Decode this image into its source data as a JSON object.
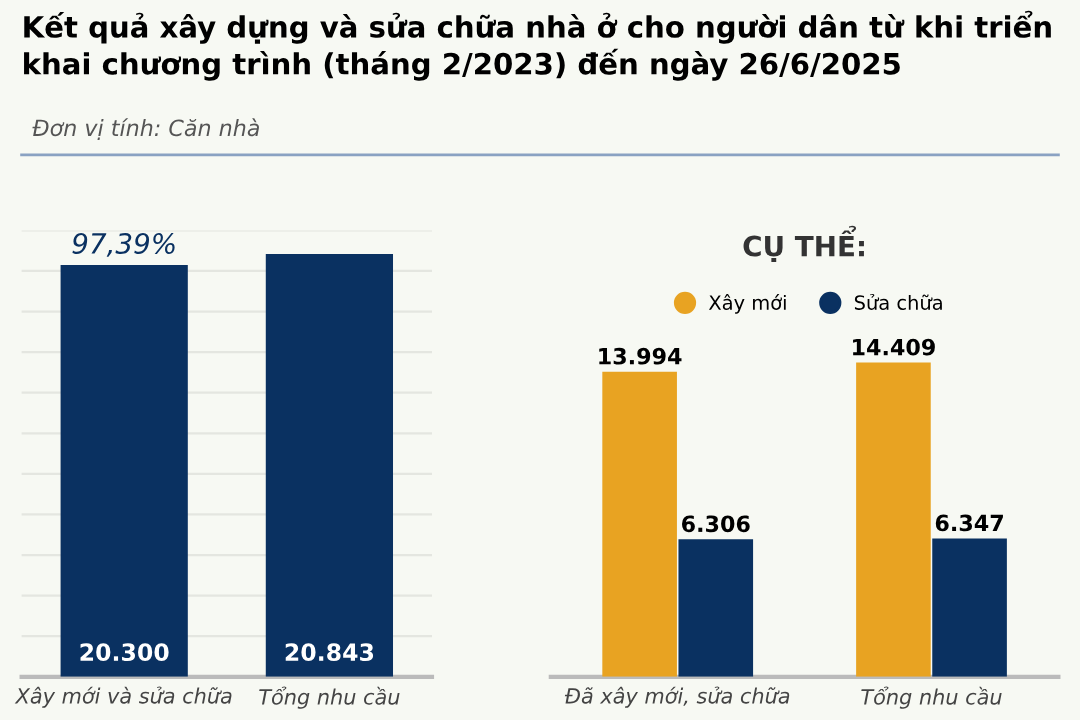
{
  "chart_data": [
    {
      "type": "bar",
      "title": "Kết quả xây dựng và sửa chữa nhà ở cho người dân từ khi triển khai chương trình (tháng 2/2023) đến ngày 26/6/2025",
      "subtitle": "Đơn vị tính: Căn nhà",
      "categories": [
        "Xây mới và sửa chữa",
        "Tổng nhu cầu"
      ],
      "values": [
        20300,
        20843
      ],
      "color": "#0a3161",
      "value_labels": [
        "20.300",
        "20.843"
      ],
      "annotations": [
        {
          "text": "97,39%",
          "x": "Xây mới và sửa chữa",
          "y": 20300
        }
      ],
      "ylim": [
        0,
        22000
      ],
      "yticks": [
        {
          "value": 0,
          "label": null
        },
        {
          "value": 2000,
          "label": null
        },
        {
          "value": 4000,
          "label": null
        },
        {
          "value": 6000,
          "label": null
        },
        {
          "value": 8000,
          "label": null
        },
        {
          "value": 10000,
          "label": null
        },
        {
          "value": 12000,
          "label": null
        },
        {
          "value": 14000,
          "label": null
        },
        {
          "value": 16000,
          "label": null
        },
        {
          "value": 18000,
          "label": null
        },
        {
          "value": 20000,
          "label": null
        },
        {
          "value": 22000,
          "label": null
        }
      ],
      "grid": "y",
      "tick_labels": "x"
    },
    {
      "type": "bar",
      "title": "CỤ THỂ:",
      "categories": [
        "Đã xây mới, sửa chữa",
        "Tổng nhu cầu"
      ],
      "series": [
        {
          "name": "Xây mới",
          "color": "#e8a322",
          "values": [
            13994,
            14409
          ],
          "value_labels": [
            "13.994",
            "14.409"
          ]
        },
        {
          "name": "Sửa chữa",
          "color": "#0a3161",
          "values": [
            6306,
            6347
          ],
          "value_labels": [
            "6.306",
            "6.347"
          ]
        }
      ],
      "legend": "top",
      "tick_labels": "x"
    }
  ]
}
